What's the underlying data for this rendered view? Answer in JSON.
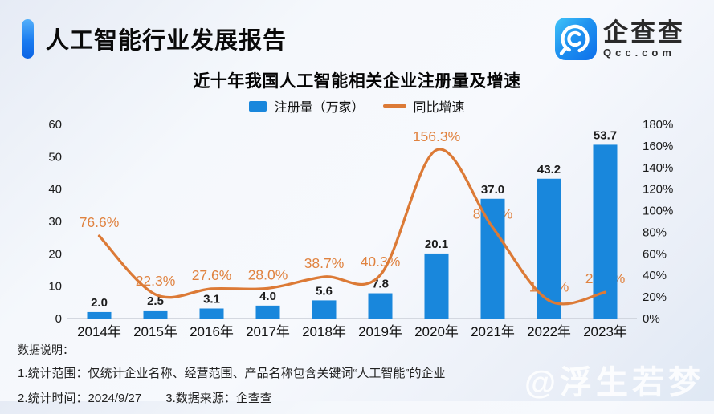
{
  "header": {
    "title": "人工智能行业发展报告",
    "logo": {
      "brand": "企查查",
      "domain": "Qcc.com"
    }
  },
  "chart": {
    "title": "近十年我国人工智能相关企业注册量及增速"
  },
  "chart_data": {
    "type": "bar+line",
    "title": "近十年我国人工智能相关企业注册量及增速",
    "categories": [
      "2014年",
      "2015年",
      "2016年",
      "2017年",
      "2018年",
      "2019年",
      "2020年",
      "2021年",
      "2022年",
      "2023年"
    ],
    "series": [
      {
        "name": "注册量（万家）",
        "type": "bar",
        "axis": "left",
        "color": "#1987dc",
        "values": [
          2.0,
          2.5,
          3.1,
          4.0,
          5.6,
          7.8,
          20.1,
          37.0,
          43.2,
          53.7
        ]
      },
      {
        "name": "同比增速",
        "type": "line",
        "axis": "right",
        "color": "#dc7a36",
        "label_color": "#e0823f",
        "values_pct": [
          76.6,
          22.3,
          27.6,
          28.0,
          38.7,
          40.3,
          156.3,
          84.3,
          16.7,
          24.4
        ]
      }
    ],
    "left_axis": {
      "min": 0,
      "max": 60,
      "tick_values": [
        0,
        10,
        20,
        30,
        40,
        50,
        60
      ]
    },
    "right_axis": {
      "min": 0,
      "max": 180,
      "tick_values": [
        0,
        20,
        40,
        60,
        80,
        100,
        120,
        140,
        160,
        180
      ],
      "suffix": "%"
    },
    "grid": "off",
    "legend_position": "top-center"
  },
  "footer": {
    "heading": "数据说明：",
    "note_scope": "1.统计范围：仅统计企业名称、经营范围、产品名称包含关键词“人工智能”的企业",
    "note_time": "2.统计时间：2024/9/27",
    "note_source": "3.数据来源：企查查"
  },
  "watermark": "@浮生若梦"
}
